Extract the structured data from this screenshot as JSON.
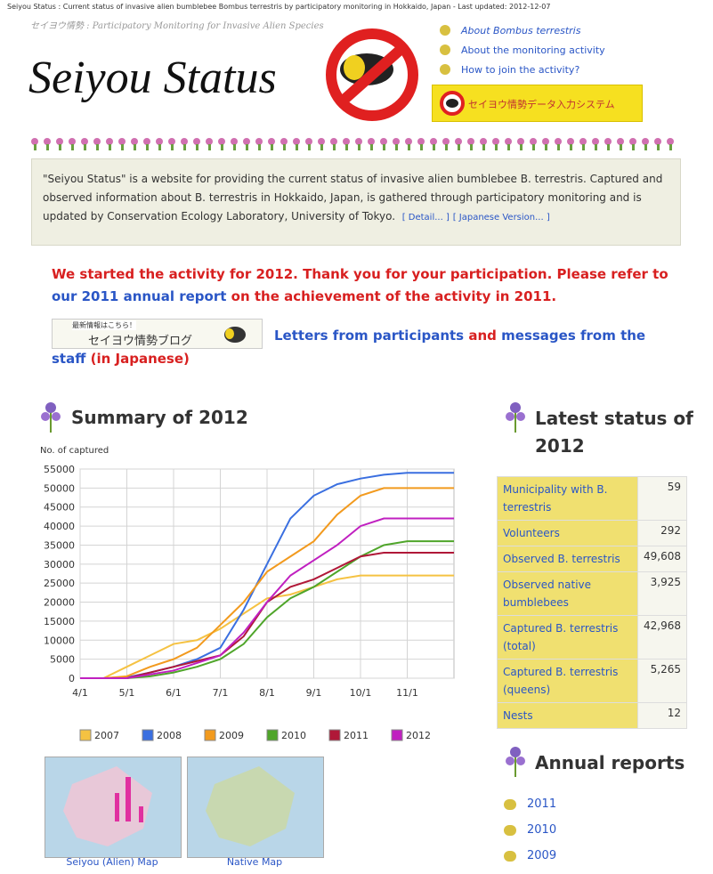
{
  "header": {
    "top_line": "Seiyou Status : Current status of invasive alien bumblebee Bombus terrestris by participatory monitoring in Hokkaido, Japan - Last updated: 2012-12-07",
    "subtitle": "セイヨウ情勢 : Participatory Monitoring for Invasive Alien Species",
    "logo": "Seiyou Status",
    "nav": [
      "About Bombus terrestris",
      "About the monitoring activity",
      "How to join the activity?"
    ],
    "banner": "セイヨウ情勢データ入力システム"
  },
  "intro": {
    "text": "\"Seiyou Status\" is a website for providing the current status of invasive alien bumblebee B. terrestris. Captured and observed information about B. terrestris in Hokkaido, Japan, is gathered through participatory monitoring and is updated by Conservation Ecology Laboratory, University of Tokyo.",
    "links": [
      "[ Detail... ]",
      "[ Japanese Version... ]"
    ]
  },
  "notice": [
    "We started the activity for 2012. Thank you for your participation. Please refer to",
    "our 2011 annual report",
    "on the achievement of the activity in 2011."
  ],
  "blog": {
    "small": "最新情報はこちら！",
    "title": "セイヨウ情勢ブログ"
  },
  "letters": [
    "Letters from participants",
    "and",
    "messages from the staff",
    "(in Japanese)"
  ],
  "summary": {
    "title": "Summary of 2012",
    "maps": [
      "Seiyou (Alien) Map",
      "Native Map"
    ]
  },
  "chart_data": {
    "type": "line",
    "y_label": "No. of captured",
    "x": [
      "4/1",
      "4/15",
      "5/1",
      "5/15",
      "6/1",
      "6/15",
      "7/1",
      "7/15",
      "8/1",
      "8/15",
      "9/1",
      "9/15",
      "10/1",
      "10/15",
      "11/1",
      "11/15",
      "11/30"
    ],
    "xticks": [
      "4/1",
      "5/1",
      "6/1",
      "7/1",
      "8/1",
      "9/1",
      "10/1",
      "11/1"
    ],
    "ylim": [
      0,
      55000
    ],
    "yticks": [
      0,
      5000,
      10000,
      15000,
      20000,
      25000,
      30000,
      35000,
      40000,
      45000,
      50000,
      55000
    ],
    "grid": true,
    "series": [
      {
        "name": "2007",
        "color": "#f5c242",
        "values": [
          0,
          0,
          3000,
          6000,
          9000,
          10000,
          13000,
          17000,
          21000,
          22000,
          24000,
          26000,
          27000,
          27000,
          27000,
          27000,
          27000
        ]
      },
      {
        "name": "2008",
        "color": "#3a6fe0",
        "values": [
          0,
          0,
          200,
          1500,
          3000,
          5000,
          8000,
          18000,
          30000,
          42000,
          48000,
          51000,
          52500,
          53500,
          54000,
          54000,
          54000
        ]
      },
      {
        "name": "2009",
        "color": "#f29a1e",
        "values": [
          0,
          0,
          500,
          3000,
          5000,
          8000,
          14000,
          20000,
          28000,
          32000,
          36000,
          43000,
          48000,
          50000,
          50000,
          50000,
          50000
        ]
      },
      {
        "name": "2010",
        "color": "#4fa52a",
        "values": [
          0,
          0,
          0,
          500,
          1500,
          3000,
          5000,
          9000,
          16000,
          21000,
          24000,
          28000,
          32000,
          35000,
          36000,
          36000,
          36000
        ]
      },
      {
        "name": "2011",
        "color": "#b01838",
        "values": [
          0,
          0,
          0,
          1500,
          3000,
          4500,
          6000,
          11000,
          20000,
          24000,
          26000,
          29000,
          32000,
          33000,
          33000,
          33000,
          33000
        ]
      },
      {
        "name": "2012",
        "color": "#c020c0",
        "values": [
          0,
          0,
          0,
          1000,
          2000,
          4000,
          6000,
          12000,
          20000,
          27000,
          31000,
          35000,
          40000,
          42000,
          42000,
          42000,
          42000
        ]
      }
    ]
  },
  "status": {
    "title": "Latest status of 2012",
    "rows": [
      [
        "Municipality with B. terrestris",
        "59"
      ],
      [
        "Volunteers",
        "292"
      ],
      [
        "Observed B. terrestris",
        "49,608"
      ],
      [
        "Observed native bumblebees",
        "3,925"
      ],
      [
        "Captured B. terrestris (total)",
        "42,968"
      ],
      [
        "Captured B. terrestris (queens)",
        "5,265"
      ],
      [
        "Nests",
        "12"
      ]
    ]
  },
  "annual": {
    "title": "Annual reports",
    "links": [
      "2011",
      "2010",
      "2009"
    ]
  }
}
